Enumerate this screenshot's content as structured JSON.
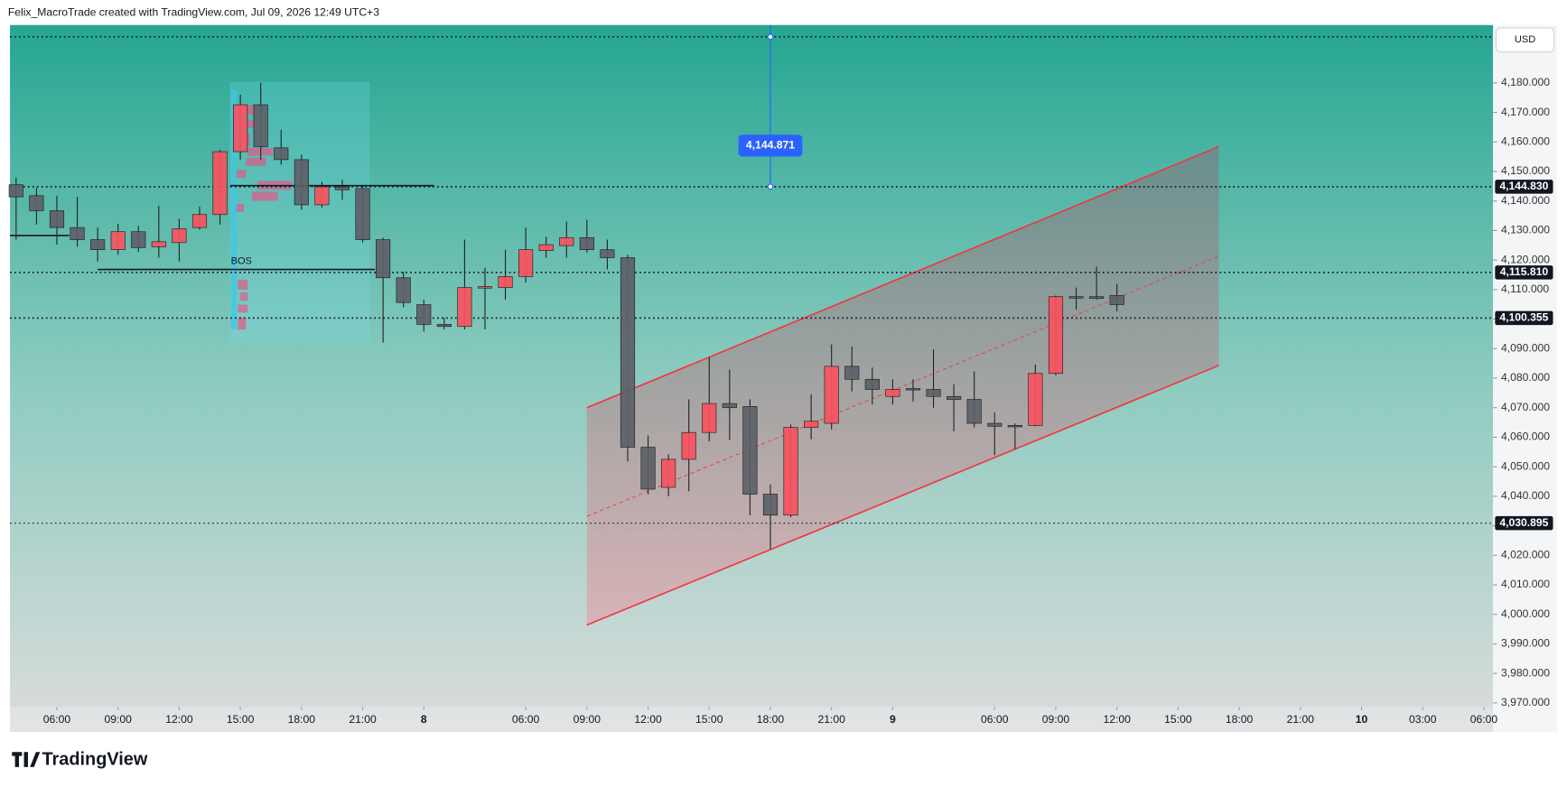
{
  "header": "Felix_MacroTrade created with TradingView.com, Jul 09, 2026 12:49 UTC+3",
  "footer": "TradingView",
  "chart_data": {
    "type": "candlestick",
    "currency": "USD",
    "open": [
      4145.5,
      4141.8,
      4136.7,
      4131,
      4126.9,
      4123.5,
      4129.6,
      4124.5,
      4125.9,
      4131,
      4135.4,
      4156.7,
      4172.6,
      4158,
      4154,
      4138.7,
      4144.8,
      4144.2,
      4126.9,
      4114,
      4104.9,
      4098.2,
      4097.5,
      4110.5,
      4110.7,
      4114.4,
      4123.2,
      4124.9,
      4127.6,
      4123.5,
      4120.8,
      4056.6,
      4043,
      4052.5,
      4061.6,
      4071.4,
      4070.4,
      4040.7,
      4033.6,
      4063.3,
      4064.7,
      4084,
      4079.6,
      4073.8,
      4076.5,
      4076.2,
      4073.8,
      4072.8,
      4064.7,
      4064,
      4064,
      4081.6,
      4107.6,
      4107.6,
      4108
    ],
    "high": [
      4147.9,
      4144.5,
      4141.8,
      4141.4,
      4131,
      4132.3,
      4131.6,
      4138.4,
      4134,
      4138.1,
      4157.3,
      4176,
      4180,
      4164.1,
      4155.7,
      4146.5,
      4147.2,
      4145.5,
      4127.6,
      4116,
      4106.6,
      4100.5,
      4126.9,
      4117.4,
      4123.5,
      4131,
      4127.9,
      4133,
      4133.7,
      4126.9,
      4121.8,
      4060.6,
      4054.2,
      4072.8,
      4087,
      4082.9,
      4072.8,
      4044,
      4064.3,
      4074.5,
      4091.4,
      4090.7,
      4083.6,
      4079.6,
      4079.6,
      4089.7,
      4077.9,
      4082.3,
      4068.4,
      4064.7,
      4084.6,
      4108,
      4110.7,
      4117.8,
      4112
    ],
    "low": [
      4126.9,
      4132,
      4125.2,
      4124.5,
      4119.5,
      4121.8,
      4122.8,
      4120.8,
      4119.5,
      4130.3,
      4132,
      4154,
      4154,
      4152.3,
      4137,
      4137.7,
      4140.4,
      4125.9,
      4092,
      4104,
      4095.8,
      4096.5,
      4096.5,
      4096.5,
      4106.6,
      4112.4,
      4120.8,
      4120.8,
      4122.5,
      4116.8,
      4051.8,
      4040.7,
      4040,
      4041.7,
      4058.6,
      4059,
      4033.6,
      4022,
      4032.9,
      4059.3,
      4062.6,
      4075.5,
      4071.1,
      4071.1,
      4072.1,
      4070,
      4062,
      4063.3,
      4053.9,
      4056,
      4063.7,
      4080.9,
      4103.2,
      4106.6,
      4102.6
    ],
    "close": [
      4141.4,
      4136.7,
      4131,
      4126.9,
      4123.5,
      4129.6,
      4124.2,
      4126.2,
      4130.6,
      4135.4,
      4156.7,
      4172.6,
      4158.4,
      4154,
      4138.7,
      4144.8,
      4143.8,
      4126.9,
      4114,
      4105.6,
      4098.2,
      4097.5,
      4110.7,
      4111,
      4114.4,
      4123.5,
      4125.2,
      4127.6,
      4123.5,
      4120.8,
      4056.6,
      4042.4,
      4052.5,
      4061.6,
      4071.4,
      4070,
      4040.7,
      4033.6,
      4063.3,
      4065.4,
      4084,
      4079.6,
      4076.2,
      4076.2,
      4076,
      4073.8,
      4072.8,
      4064.7,
      4063.7,
      4063.8,
      4081.6,
      4107.6,
      4107.3,
      4107,
      4104.9
    ],
    "up_color": "#f7525f",
    "down_color": "#5d6168",
    "xlim": [
      -0.3,
      72.45
    ],
    "xticks": [
      {
        "value": 2,
        "label": "06:00"
      },
      {
        "value": 5,
        "label": "09:00"
      },
      {
        "value": 8,
        "label": "12:00"
      },
      {
        "value": 11,
        "label": "15:00"
      },
      {
        "value": 14,
        "label": "18:00"
      },
      {
        "value": 17,
        "label": "21:00"
      },
      {
        "value": 20,
        "label": "8"
      },
      {
        "value": 25,
        "label": "06:00"
      },
      {
        "value": 28,
        "label": "09:00"
      },
      {
        "value": 31,
        "label": "12:00"
      },
      {
        "value": 34,
        "label": "15:00"
      },
      {
        "value": 37,
        "label": "18:00"
      },
      {
        "value": 40,
        "label": "21:00"
      },
      {
        "value": 43,
        "label": "9"
      },
      {
        "value": 48,
        "label": "06:00"
      },
      {
        "value": 51,
        "label": "09:00"
      },
      {
        "value": 54,
        "label": "12:00"
      },
      {
        "value": 57,
        "label": "15:00"
      },
      {
        "value": 60,
        "label": "18:00"
      },
      {
        "value": 63,
        "label": "21:00"
      },
      {
        "value": 66,
        "label": "10"
      },
      {
        "value": 69,
        "label": "03:00"
      },
      {
        "value": 72,
        "label": "06:00"
      }
    ],
    "ylim": [
      3968.6,
      4199.6
    ],
    "yticks": [
      {
        "value": 3970,
        "label": "3,970.000"
      },
      {
        "value": 3980,
        "label": "3,980.000"
      },
      {
        "value": 3990,
        "label": "3,990.000"
      },
      {
        "value": 4000,
        "label": "4,000.000"
      },
      {
        "value": 4010,
        "label": "4,010.000"
      },
      {
        "value": 4020,
        "label": "4,020.000"
      },
      {
        "value": 4030,
        "label": "4,030.000"
      },
      {
        "value": 4040,
        "label": "4,040.000"
      },
      {
        "value": 4050,
        "label": "4,050.000"
      },
      {
        "value": 4060,
        "label": "4,060.000"
      },
      {
        "value": 4070,
        "label": "4,070.000"
      },
      {
        "value": 4080,
        "label": "4,080.000"
      },
      {
        "value": 4090,
        "label": "4,090.000"
      },
      {
        "value": 4100,
        "label": "4,100.000"
      },
      {
        "value": 4110,
        "label": "4,110.000"
      },
      {
        "value": 4120,
        "label": "4,120.000"
      },
      {
        "value": 4130,
        "label": "4,130.000"
      },
      {
        "value": 4140,
        "label": "4,140.000"
      },
      {
        "value": 4150,
        "label": "4,150.000"
      },
      {
        "value": 4160,
        "label": "4,160.000"
      },
      {
        "value": 4170,
        "label": "4,170.000"
      },
      {
        "value": 4180,
        "label": "4,180.000"
      }
    ],
    "levels": [
      {
        "value": 4195.6
      },
      {
        "value": 4144.83,
        "label": "4,144.830"
      },
      {
        "value": 4115.81,
        "label": "4,115.810"
      },
      {
        "value": 4100.355,
        "label": "4,100.355"
      },
      {
        "value": 4030.895,
        "label": "4,030.895"
      }
    ],
    "marker": {
      "x": 37,
      "value": 4144.871,
      "label": "4,144.871"
    },
    "hlines": [
      {
        "value": 4128.3,
        "x": [
          -0.3,
          2.6
        ]
      },
      {
        "value": 4116.8,
        "x": [
          4,
          17.6
        ]
      },
      {
        "value": 4145.2,
        "x": [
          10.5,
          20.5
        ]
      }
    ],
    "annotation": "BOS",
    "channel": {
      "x": [
        28,
        59
      ],
      "upper": [
        4070,
        4158.4
      ],
      "lower": [
        3996.4,
        4084.3
      ]
    }
  }
}
